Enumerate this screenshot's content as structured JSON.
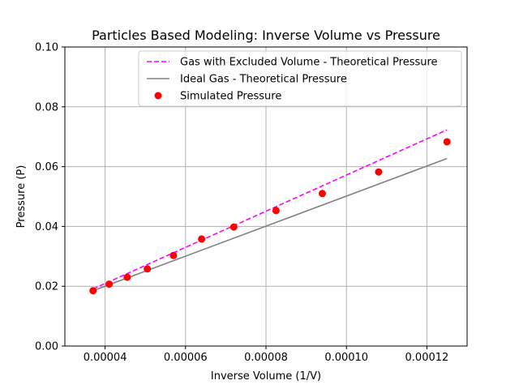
{
  "chart_data": {
    "type": "scatter",
    "title": "Particles Based Modeling: Inverse Volume vs Pressure",
    "xlabel": "Inverse Volume (1/V)",
    "ylabel": "Pressure (P)",
    "xlim": [
      3e-05,
      0.00013
    ],
    "ylim": [
      0.0,
      0.1
    ],
    "xticks": [
      4e-05,
      6e-05,
      8e-05,
      0.0001,
      0.00012
    ],
    "xtick_labels": [
      "0.00004",
      "0.00006",
      "0.00008",
      "0.00010",
      "0.00012"
    ],
    "yticks": [
      0.0,
      0.02,
      0.04,
      0.06,
      0.08,
      0.1
    ],
    "ytick_labels": [
      "0.00",
      "0.02",
      "0.04",
      "0.06",
      "0.08",
      "0.10"
    ],
    "grid": true,
    "legend_position": "top-right",
    "series": [
      {
        "name": "Gas with Excluded Volume - Theoretical Pressure",
        "kind": "line",
        "style": "dashed",
        "color": "#ff00ff",
        "x": [
          3.7e-05,
          0.000125
        ],
        "y": [
          0.0191,
          0.0723
        ]
      },
      {
        "name": "Ideal Gas - Theoretical Pressure",
        "kind": "line",
        "style": "solid",
        "color": "#808080",
        "x": [
          3.7e-05,
          0.000125
        ],
        "y": [
          0.0185,
          0.0627
        ]
      },
      {
        "name": "Simulated Pressure",
        "kind": "scatter",
        "color": "#ff0000",
        "x": [
          3.7e-05,
          4.1e-05,
          4.55e-05,
          5.05e-05,
          5.7e-05,
          6.4e-05,
          7.2e-05,
          8.25e-05,
          9.4e-05,
          0.000108,
          0.000125
        ],
        "y": [
          0.0185,
          0.0207,
          0.023,
          0.0258,
          0.0303,
          0.0358,
          0.0398,
          0.0453,
          0.051,
          0.0582,
          0.0683
        ]
      }
    ]
  }
}
